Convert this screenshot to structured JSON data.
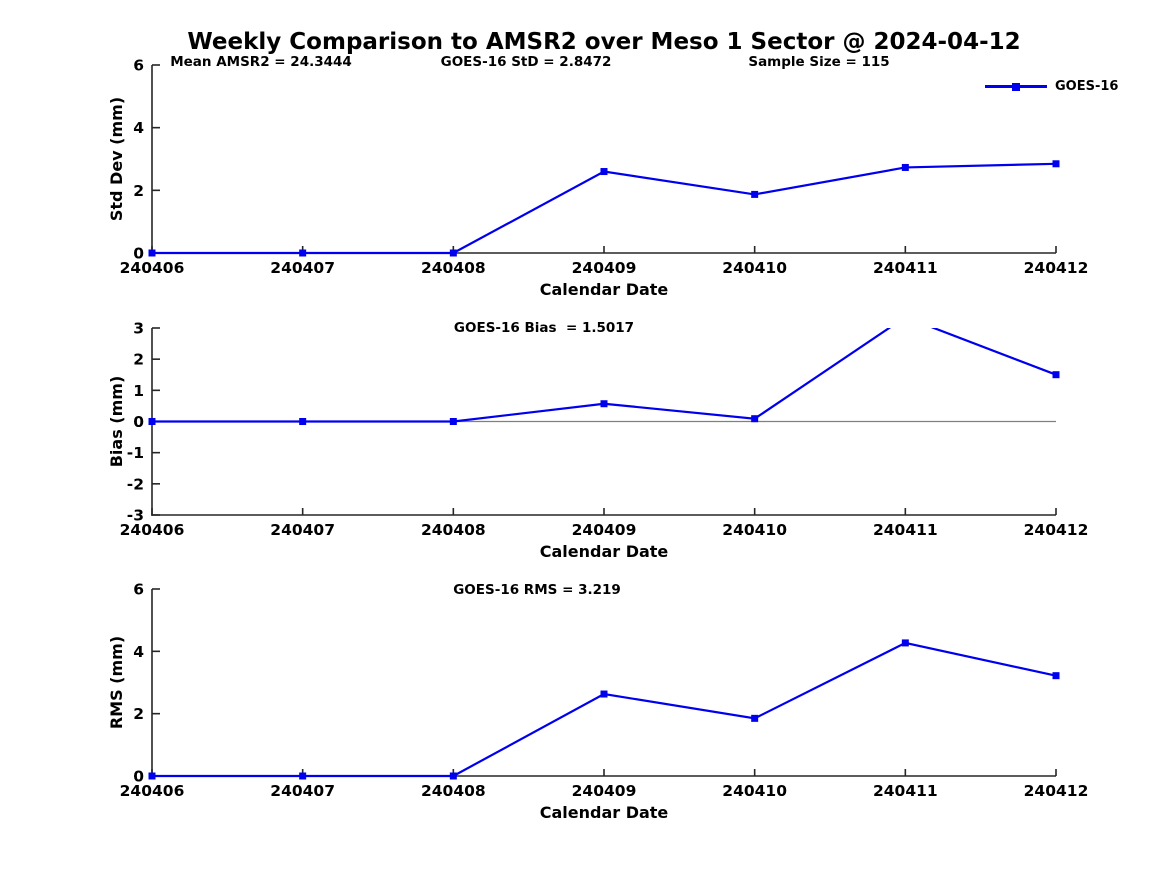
{
  "title": "Weekly Comparison to AMSR2 over Meso 1 Sector @ 2024-04-12",
  "colors": {
    "series": "#0000ee",
    "axis": "#262626",
    "zero_line": "#808080",
    "text": "#000000",
    "background": "#ffffff"
  },
  "chart_data": [
    {
      "id": "stddev",
      "type": "line",
      "categories": [
        "240406",
        "240407",
        "240408",
        "240409",
        "240410",
        "240411",
        "240412"
      ],
      "series": [
        {
          "name": "GOES-16",
          "values": [
            0,
            0,
            0,
            2.6,
            1.87,
            2.73,
            2.8472
          ]
        }
      ],
      "xlabel": "Calendar Date",
      "ylabel": "Std Dev (mm)",
      "ylim": [
        0,
        6
      ],
      "yticks": [
        0,
        2,
        4,
        6
      ],
      "grid": false,
      "zero_line": false,
      "annotations": [
        "Mean AMSR2 = 24.3444",
        "GOES-16 StD = 2.8472",
        "Sample Size = 115"
      ],
      "legend_position": "top-right",
      "marker": "square"
    },
    {
      "id": "bias",
      "type": "line",
      "categories": [
        "240406",
        "240407",
        "240408",
        "240409",
        "240410",
        "240411",
        "240412"
      ],
      "series": [
        {
          "name": "GOES-16",
          "values": [
            0,
            0,
            0,
            0.57,
            0.09,
            3.35,
            1.5017
          ]
        }
      ],
      "xlabel": "Calendar Date",
      "ylabel": "Bias (mm)",
      "ylim": [
        -3,
        3
      ],
      "yticks": [
        -3,
        -2,
        -1,
        0,
        1,
        2,
        3
      ],
      "grid": false,
      "zero_line": true,
      "annotations": [
        "GOES-16 Bias  = 1.5017"
      ],
      "legend_position": "none",
      "marker": "square",
      "note": "value at 240411 exceeds axis max and is clipped at y=3"
    },
    {
      "id": "rms",
      "type": "line",
      "categories": [
        "240406",
        "240407",
        "240408",
        "240409",
        "240410",
        "240411",
        "240412"
      ],
      "series": [
        {
          "name": "GOES-16",
          "values": [
            0,
            0,
            0,
            2.63,
            1.85,
            4.27,
            3.219
          ]
        }
      ],
      "xlabel": "Calendar Date",
      "ylabel": "RMS (mm)",
      "ylim": [
        0,
        6
      ],
      "yticks": [
        0,
        2,
        4,
        6
      ],
      "grid": false,
      "zero_line": false,
      "annotations": [
        "GOES-16 RMS = 3.219"
      ],
      "legend_position": "none",
      "marker": "square"
    }
  ]
}
